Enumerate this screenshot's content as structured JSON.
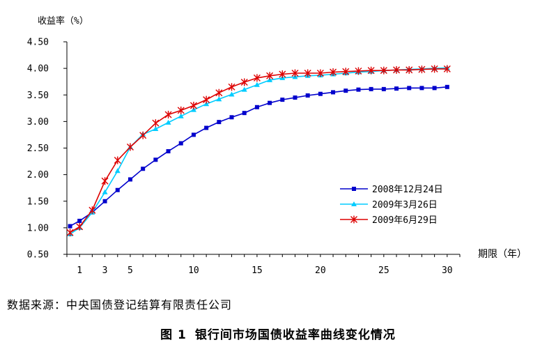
{
  "chart_data": {
    "type": "line",
    "title": "",
    "ylabel": "收益率（%）",
    "xlabel": "期限（年）",
    "ylim": [
      0.5,
      4.5
    ],
    "yticks": [
      "0.50",
      "1.00",
      "1.50",
      "2.00",
      "2.50",
      "3.00",
      "3.50",
      "4.00",
      "4.50"
    ],
    "yticks_values": [
      0.5,
      1.0,
      1.5,
      2.0,
      2.5,
      3.0,
      3.5,
      4.0,
      4.5
    ],
    "xticks": [
      "1",
      "3",
      "5",
      "10",
      "15",
      "20",
      "25",
      "30"
    ],
    "xticks_values": [
      1,
      3,
      5,
      10,
      15,
      20,
      25,
      30
    ],
    "xlim": [
      0,
      31
    ],
    "legend": "right",
    "grid": false,
    "series": [
      {
        "name": "2008年12月24日",
        "color": "#0000cc",
        "marker": "square",
        "x": [
          0.25,
          1,
          2,
          3,
          4,
          5,
          6,
          7,
          8,
          9,
          10,
          11,
          12,
          13,
          14,
          15,
          16,
          17,
          18,
          19,
          20,
          21,
          22,
          23,
          24,
          25,
          26,
          27,
          28,
          29,
          30
        ],
        "values": [
          1.03,
          1.13,
          1.29,
          1.5,
          1.71,
          1.91,
          2.11,
          2.28,
          2.44,
          2.59,
          2.75,
          2.88,
          2.99,
          3.08,
          3.16,
          3.27,
          3.35,
          3.41,
          3.45,
          3.49,
          3.52,
          3.55,
          3.58,
          3.6,
          3.61,
          3.61,
          3.62,
          3.63,
          3.63,
          3.63,
          3.65
        ]
      },
      {
        "name": "2009年3月26日",
        "color": "#00ccff",
        "marker": "triangle",
        "x": [
          0.25,
          1,
          2,
          3,
          4,
          5,
          6,
          7,
          8,
          9,
          10,
          11,
          12,
          13,
          14,
          15,
          16,
          17,
          18,
          19,
          20,
          21,
          22,
          23,
          24,
          25,
          26,
          27,
          28,
          29,
          30
        ],
        "values": [
          0.88,
          1.0,
          1.29,
          1.67,
          2.07,
          2.52,
          2.76,
          2.86,
          2.98,
          3.1,
          3.22,
          3.33,
          3.42,
          3.51,
          3.6,
          3.69,
          3.78,
          3.82,
          3.84,
          3.86,
          3.87,
          3.89,
          3.91,
          3.93,
          3.94,
          3.96,
          3.97,
          3.98,
          3.99,
          4.0,
          4.01
        ]
      },
      {
        "name": "2009年6月29日",
        "color": "#dd0000",
        "marker": "star",
        "x": [
          0.25,
          1,
          2,
          3,
          4,
          5,
          6,
          7,
          8,
          9,
          10,
          11,
          12,
          13,
          14,
          15,
          16,
          17,
          18,
          19,
          20,
          21,
          22,
          23,
          24,
          25,
          26,
          27,
          28,
          29,
          30
        ],
        "values": [
          0.91,
          1.02,
          1.33,
          1.88,
          2.27,
          2.52,
          2.74,
          2.97,
          3.13,
          3.21,
          3.3,
          3.41,
          3.54,
          3.65,
          3.74,
          3.82,
          3.86,
          3.89,
          3.91,
          3.91,
          3.91,
          3.93,
          3.94,
          3.95,
          3.96,
          3.96,
          3.97,
          3.97,
          3.98,
          3.99,
          3.99
        ]
      }
    ]
  },
  "source_text": "数据来源：中央国债登记结算有限责任公司",
  "caption": {
    "fig_label": "图 1",
    "title": "银行间市场国债收益率曲线变化情况"
  }
}
